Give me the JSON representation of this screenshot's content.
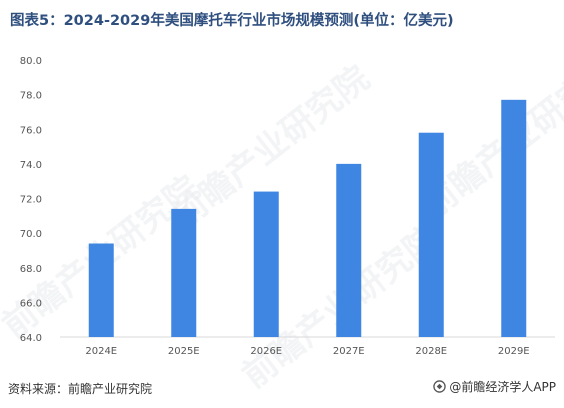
{
  "title": "图表5：2024-2029年美国摩托车行业市场规模预测(单位：亿美元)",
  "footer": {
    "source": "资料来源：前瞻产业研究院",
    "brand": "@前瞻经济学人APP"
  },
  "watermark": "前瞻产业研究院",
  "colors": {
    "bar": "#3f86e2",
    "title": "#2f4f7f"
  },
  "chart_data": {
    "type": "bar",
    "categories": [
      "2024E",
      "2025E",
      "2026E",
      "2027E",
      "2028E",
      "2029E"
    ],
    "values": [
      69.4,
      71.4,
      72.4,
      74.0,
      75.8,
      77.7
    ],
    "ylim": [
      64.0,
      80.0
    ],
    "yticks": [
      "64.0",
      "66.0",
      "68.0",
      "70.0",
      "72.0",
      "74.0",
      "76.0",
      "78.0",
      "80.0"
    ],
    "grid": false,
    "legend": "none"
  }
}
